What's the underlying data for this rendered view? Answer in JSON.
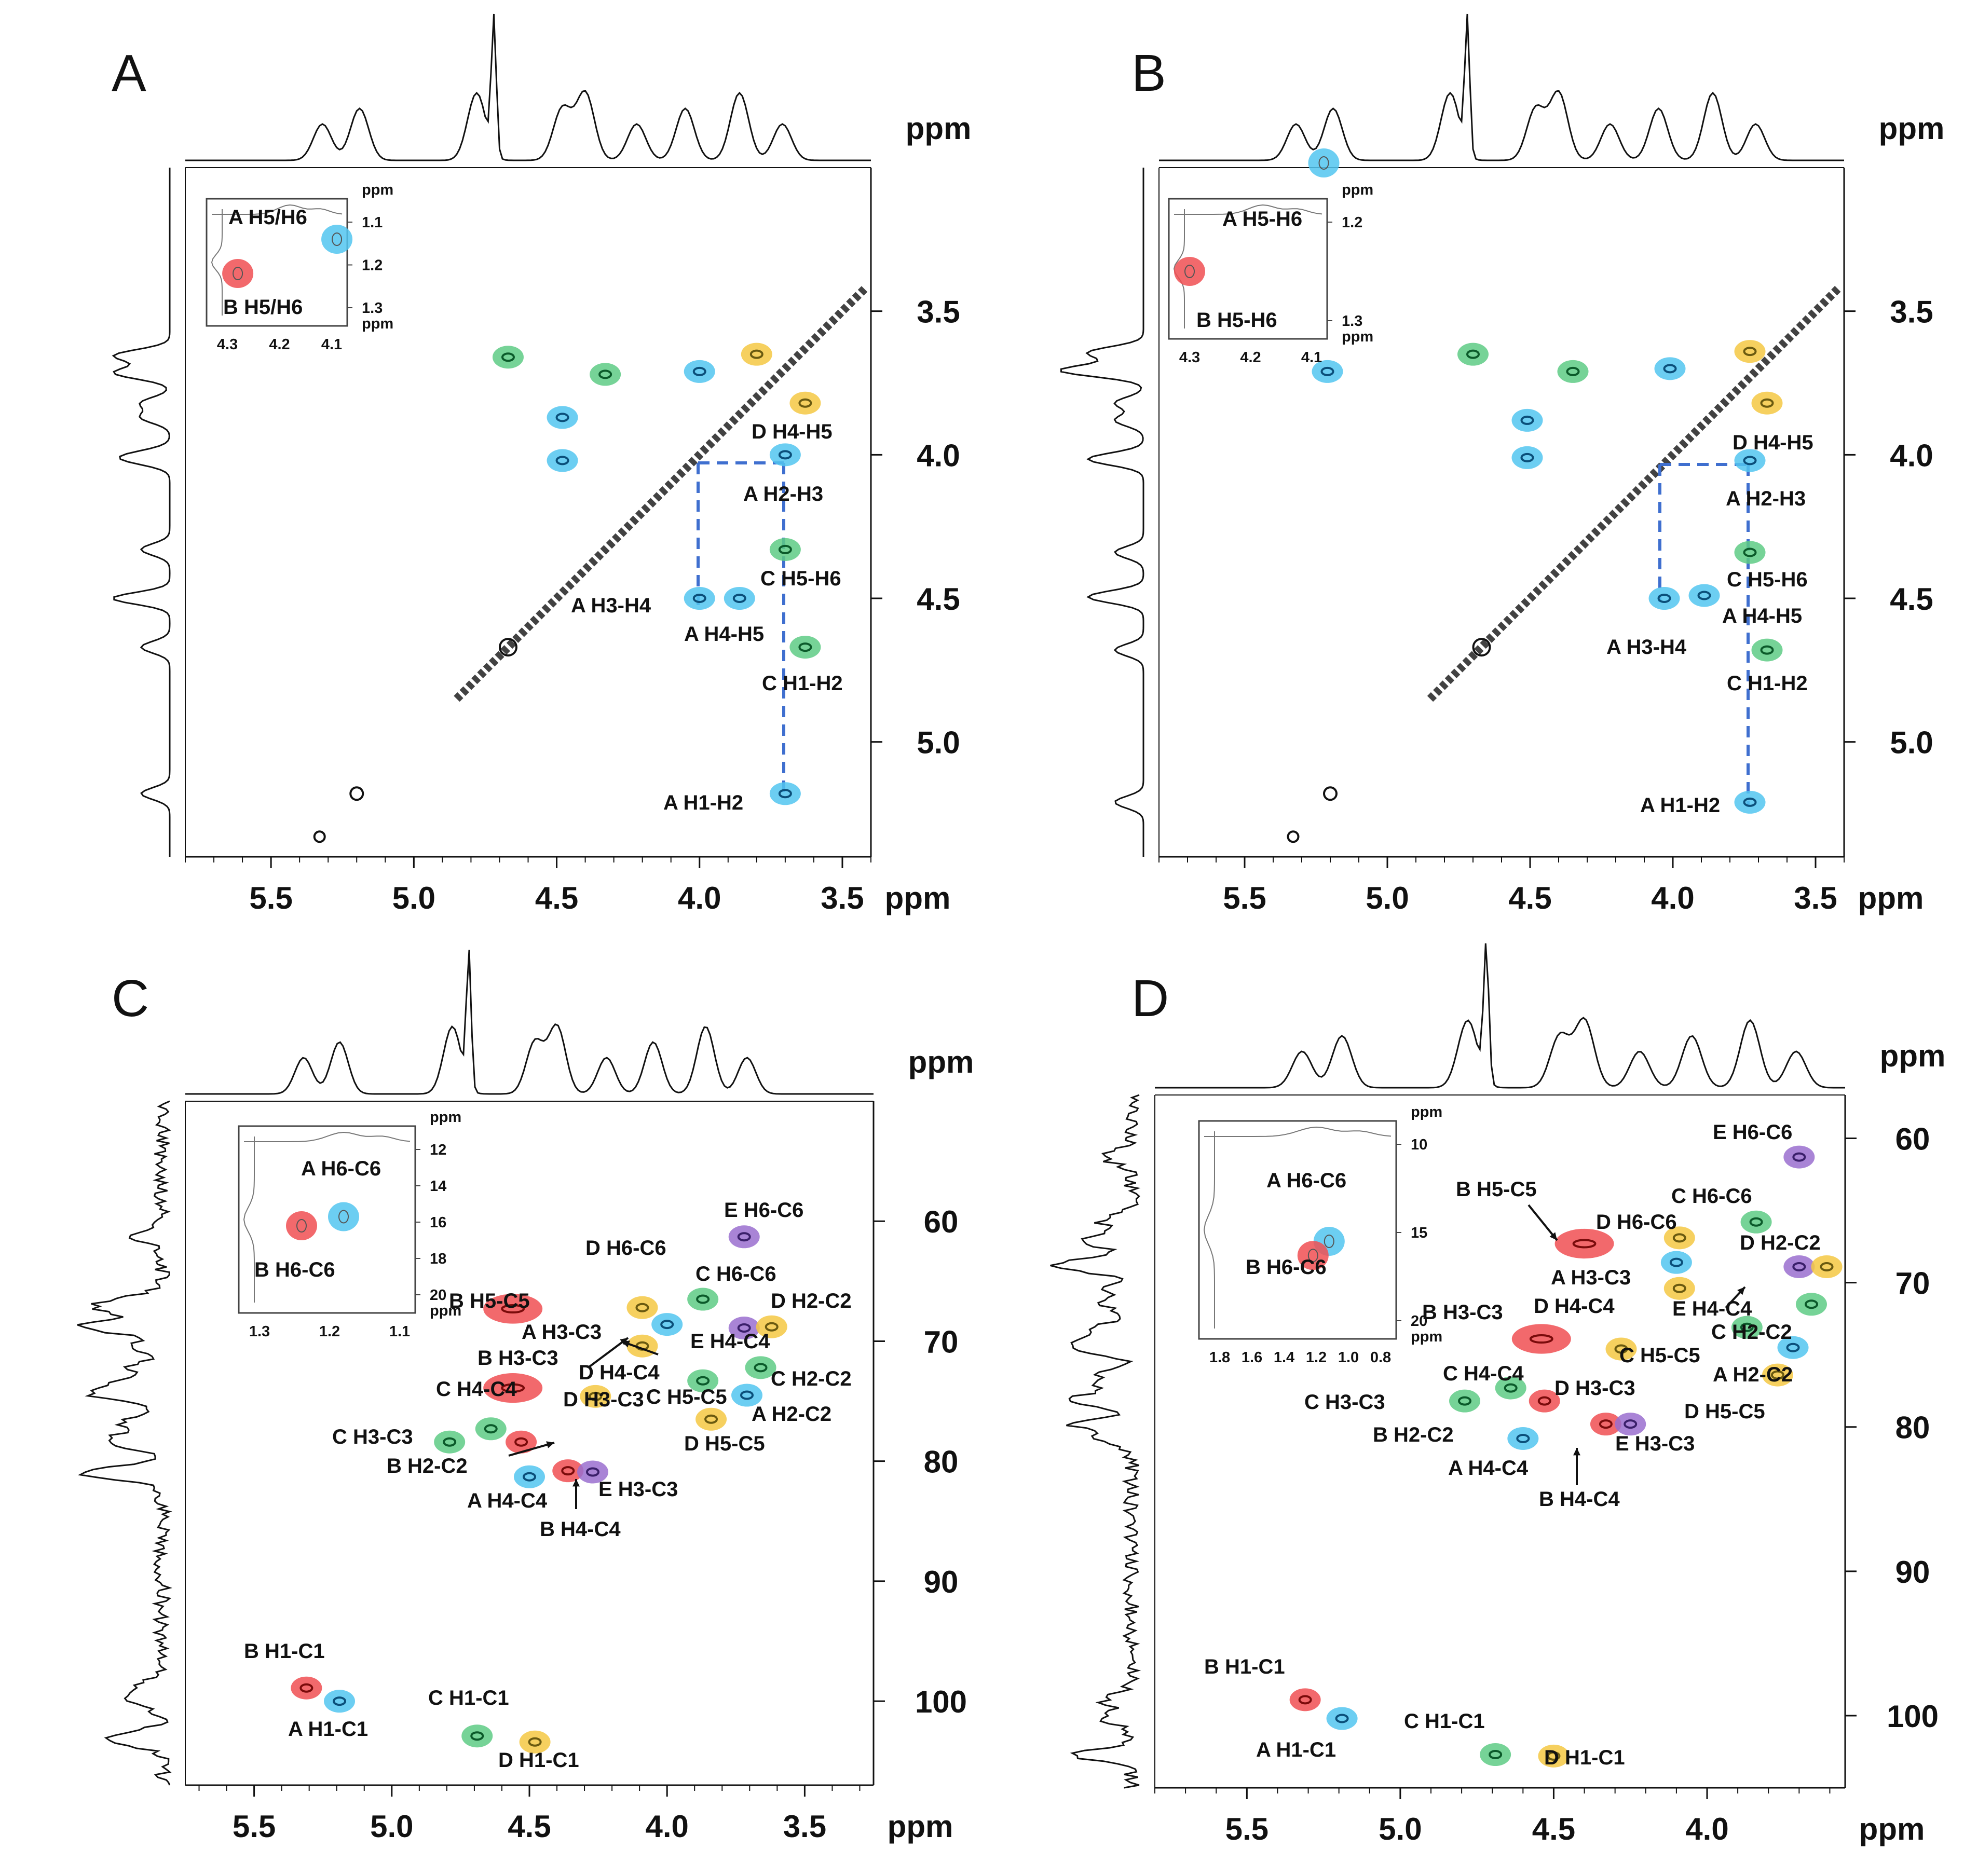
{
  "figure_colors": {
    "A": "#52c6f0",
    "B": "#f04f52",
    "C": "#5ecb85",
    "D": "#f5c843",
    "E": "#9a6fcf",
    "dashed_line": "#3f6fcf",
    "contour_blue": "#0b4f7a",
    "contour_red": "#7a0b0b",
    "contour_green": "#0b5a2a",
    "contour_yellow": "#6a5a10"
  },
  "chart_data": [
    {
      "panel": "A",
      "type": "scatter",
      "kind": "2D homonuclear correlation spectrum",
      "xlabel": "ppm",
      "ylabel": "ppm",
      "xlim": [
        5.8,
        3.4
      ],
      "ylim": [
        3.0,
        5.4
      ],
      "xticks": [
        "5.5",
        "5.0",
        "4.5",
        "4.0",
        "3.5"
      ],
      "yticks": [
        "3.5",
        "4.0",
        "4.5",
        "5.0"
      ],
      "peaks": [
        {
          "x": 4.67,
          "y": 3.66,
          "residue": "C"
        },
        {
          "x": 4.33,
          "y": 3.72,
          "residue": "C"
        },
        {
          "x": 4.48,
          "y": 3.87,
          "residue": "A"
        },
        {
          "x": 4.48,
          "y": 4.02,
          "residue": "A"
        },
        {
          "x": 4.0,
          "y": 3.71,
          "residue": "A"
        },
        {
          "x": 3.8,
          "y": 3.65,
          "residue": "D"
        },
        {
          "x": 3.63,
          "y": 3.82,
          "residue": "D",
          "label": "D H4-H5"
        },
        {
          "x": 3.7,
          "y": 4.0,
          "residue": "A",
          "label": "A H2-H3"
        },
        {
          "x": 3.7,
          "y": 4.33,
          "residue": "C",
          "label": "C H5-H6"
        },
        {
          "x": 4.0,
          "y": 4.5,
          "residue": "A",
          "label": "A H3-H4"
        },
        {
          "x": 3.86,
          "y": 4.5,
          "residue": "A",
          "label": "A H4-H5"
        },
        {
          "x": 3.63,
          "y": 4.67,
          "residue": "C",
          "label": "C H1-H2"
        },
        {
          "x": 3.7,
          "y": 5.18,
          "residue": "A",
          "label": "A H1-H2"
        }
      ],
      "inset": {
        "xticks": [
          "4.3",
          "4.2",
          "4.1"
        ],
        "yticks": [
          "1.1",
          "1.2",
          "1.3"
        ],
        "axis_label": "ppm",
        "peaks": [
          {
            "x": 4.09,
            "y": 1.14,
            "residue": "A",
            "label": "A H5/H6"
          },
          {
            "x": 4.28,
            "y": 1.22,
            "residue": "B",
            "label": "B H5/H6"
          }
        ]
      }
    },
    {
      "panel": "B",
      "type": "scatter",
      "kind": "2D homonuclear correlation spectrum",
      "xlabel": "ppm",
      "ylabel": "ppm",
      "xlim": [
        5.8,
        3.4
      ],
      "ylim": [
        3.0,
        5.4
      ],
      "xticks": [
        "5.5",
        "5.0",
        "4.5",
        "4.0",
        "3.5"
      ],
      "yticks": [
        "3.5",
        "4.0",
        "4.5",
        "5.0"
      ],
      "peaks": [
        {
          "x": 5.21,
          "y": 3.71,
          "residue": "A"
        },
        {
          "x": 4.7,
          "y": 3.65,
          "residue": "C"
        },
        {
          "x": 4.35,
          "y": 3.71,
          "residue": "C"
        },
        {
          "x": 4.51,
          "y": 3.88,
          "residue": "A"
        },
        {
          "x": 4.51,
          "y": 4.01,
          "residue": "A"
        },
        {
          "x": 4.01,
          "y": 3.7,
          "residue": "A"
        },
        {
          "x": 3.73,
          "y": 3.64,
          "residue": "D"
        },
        {
          "x": 3.67,
          "y": 3.82,
          "residue": "D",
          "label": "D H4-H5"
        },
        {
          "x": 3.73,
          "y": 4.02,
          "residue": "A",
          "label": "A H2-H3"
        },
        {
          "x": 3.73,
          "y": 4.34,
          "residue": "C",
          "label": "C H5-H6"
        },
        {
          "x": 4.03,
          "y": 4.5,
          "residue": "A",
          "label": "A H3-H4"
        },
        {
          "x": 3.89,
          "y": 4.49,
          "residue": "A",
          "label": "A H4-H5"
        },
        {
          "x": 3.67,
          "y": 4.68,
          "residue": "C",
          "label": "C H1-H2"
        },
        {
          "x": 3.73,
          "y": 5.21,
          "residue": "A",
          "label": "A H1-H2"
        }
      ],
      "inset": {
        "xticks": [
          "4.3",
          "4.2",
          "4.1"
        ],
        "yticks": [
          "1.2",
          "1.3"
        ],
        "axis_label": "ppm",
        "peaks": [
          {
            "x": 4.08,
            "y": 1.14,
            "residue": "A",
            "label": "A H5-H6"
          },
          {
            "x": 4.3,
            "y": 1.25,
            "residue": "B",
            "label": "B H5-H6"
          }
        ]
      }
    },
    {
      "panel": "C",
      "type": "scatter",
      "kind": "2D heteronuclear correlation spectrum",
      "xlabel": "ppm",
      "ylabel": "ppm",
      "xlim": [
        5.75,
        3.25
      ],
      "ylim": [
        50,
        107
      ],
      "xticks": [
        "5.5",
        "5.0",
        "4.5",
        "4.0",
        "3.5"
      ],
      "yticks": [
        "60",
        "70",
        "80",
        "90",
        "100"
      ],
      "peaks": [
        {
          "x": 3.72,
          "y": 61.3,
          "residue": "E",
          "label": "E H6-C6"
        },
        {
          "x": 4.09,
          "y": 67.2,
          "residue": "D",
          "label": "D H6-C6"
        },
        {
          "x": 3.87,
          "y": 66.5,
          "residue": "C",
          "label": "C H6-C6"
        },
        {
          "x": 4.56,
          "y": 67.3,
          "residue": "B",
          "label": "B H5-C5"
        },
        {
          "x": 4.0,
          "y": 68.6,
          "residue": "A",
          "label": "A H3-C3"
        },
        {
          "x": 3.72,
          "y": 68.9,
          "residue": "E",
          "label": "E H4-C4"
        },
        {
          "x": 3.62,
          "y": 68.8,
          "residue": "D",
          "label": "D H2-C2"
        },
        {
          "x": 4.09,
          "y": 70.4,
          "residue": "D",
          "label": "D H4-C4"
        },
        {
          "x": 3.66,
          "y": 72.2,
          "residue": "C",
          "label": "C H2-C2"
        },
        {
          "x": 3.87,
          "y": 73.3,
          "residue": "C",
          "label": "C H5-C5"
        },
        {
          "x": 4.56,
          "y": 73.9,
          "residue": "B",
          "label": "B H3-C3"
        },
        {
          "x": 4.26,
          "y": 74.6,
          "residue": "D",
          "label": "D H3-C3"
        },
        {
          "x": 3.71,
          "y": 74.5,
          "residue": "A",
          "label": "A H2-C2"
        },
        {
          "x": 3.84,
          "y": 76.5,
          "residue": "D",
          "label": "D H5-C5"
        },
        {
          "x": 4.64,
          "y": 77.3,
          "residue": "C",
          "label": "C H4-C4"
        },
        {
          "x": 4.53,
          "y": 78.4,
          "residue": "B",
          "label": "B H2-C2"
        },
        {
          "x": 4.79,
          "y": 78.4,
          "residue": "C",
          "label": "C H3-C3"
        },
        {
          "x": 4.36,
          "y": 80.8,
          "residue": "B",
          "label": "B H4-C4"
        },
        {
          "x": 4.27,
          "y": 80.9,
          "residue": "E",
          "label": "E H3-C3"
        },
        {
          "x": 4.5,
          "y": 81.3,
          "residue": "A",
          "label": "A H4-C4"
        },
        {
          "x": 5.31,
          "y": 98.9,
          "residue": "B",
          "label": "B H1-C1"
        },
        {
          "x": 5.19,
          "y": 100.0,
          "residue": "A",
          "label": "A H1-C1"
        },
        {
          "x": 4.69,
          "y": 102.9,
          "residue": "C",
          "label": "C H1-C1"
        },
        {
          "x": 4.48,
          "y": 103.4,
          "residue": "D",
          "label": "D H1-C1"
        }
      ],
      "inset": {
        "xticks": [
          "1.3",
          "1.2",
          "1.1"
        ],
        "yticks": [
          "12",
          "14",
          "16",
          "18",
          "20"
        ],
        "axis_label": "ppm",
        "peaks": [
          {
            "x": 1.18,
            "y": 15.7,
            "residue": "A",
            "label": "A H6-C6"
          },
          {
            "x": 1.24,
            "y": 16.2,
            "residue": "B",
            "label": "B H6-C6"
          }
        ]
      }
    },
    {
      "panel": "D",
      "type": "scatter",
      "kind": "2D heteronuclear correlation spectrum",
      "xlabel": "ppm",
      "ylabel": "ppm",
      "xlim": [
        5.8,
        3.55
      ],
      "ylim": [
        57,
        105
      ],
      "xticks": [
        "5.5",
        "5.0",
        "4.5",
        "4.0"
      ],
      "yticks": [
        "60",
        "70",
        "80",
        "90",
        "100"
      ],
      "peaks": [
        {
          "x": 3.7,
          "y": 61.3,
          "residue": "E",
          "label": "E H6-C6"
        },
        {
          "x": 3.84,
          "y": 65.8,
          "residue": "C",
          "label": "C H6-C6"
        },
        {
          "x": 4.4,
          "y": 67.3,
          "residue": "B",
          "label": "B H5-C5"
        },
        {
          "x": 4.09,
          "y": 66.9,
          "residue": "D",
          "label": "D H6-C6"
        },
        {
          "x": 4.1,
          "y": 68.6,
          "residue": "A",
          "label": "A H3-C3"
        },
        {
          "x": 3.7,
          "y": 68.9,
          "residue": "E",
          "label": "E H4-C4"
        },
        {
          "x": 3.61,
          "y": 68.9,
          "residue": "D",
          "label": "D H2-C2"
        },
        {
          "x": 4.09,
          "y": 70.4,
          "residue": "D",
          "label": "D H4-C4"
        },
        {
          "x": 3.66,
          "y": 71.5,
          "residue": "C",
          "label": "C H2-C2"
        },
        {
          "x": 3.87,
          "y": 73.1,
          "residue": "C",
          "label": "C H5-C5"
        },
        {
          "x": 4.54,
          "y": 73.9,
          "residue": "B",
          "label": "B H3-C3"
        },
        {
          "x": 4.28,
          "y": 74.6,
          "residue": "D",
          "label": "D H3-C3"
        },
        {
          "x": 3.72,
          "y": 74.5,
          "residue": "A",
          "label": "A H2-C2"
        },
        {
          "x": 3.77,
          "y": 76.4,
          "residue": "D",
          "label": "D H5-C5"
        },
        {
          "x": 4.64,
          "y": 77.3,
          "residue": "C",
          "label": "C H4-C4"
        },
        {
          "x": 4.53,
          "y": 78.2,
          "residue": "B",
          "label": "B H2-C2"
        },
        {
          "x": 4.79,
          "y": 78.2,
          "residue": "C",
          "label": "C H3-C3"
        },
        {
          "x": 4.33,
          "y": 79.8,
          "residue": "B",
          "label": "B H4-C4"
        },
        {
          "x": 4.25,
          "y": 79.8,
          "residue": "E",
          "label": "E H3-C3"
        },
        {
          "x": 4.6,
          "y": 80.8,
          "residue": "A",
          "label": "A H4-C4"
        },
        {
          "x": 5.31,
          "y": 98.9,
          "residue": "B",
          "label": "B H1-C1"
        },
        {
          "x": 5.19,
          "y": 100.2,
          "residue": "A",
          "label": "A H1-C1"
        },
        {
          "x": 4.69,
          "y": 102.7,
          "residue": "C",
          "label": "C H1-C1"
        },
        {
          "x": 4.5,
          "y": 102.8,
          "residue": "D",
          "label": "D H1-C1"
        }
      ],
      "inset": {
        "xticks": [
          "1.8",
          "1.6",
          "1.4",
          "1.2",
          "1.0",
          "0.8"
        ],
        "yticks": [
          "10",
          "15",
          "20"
        ],
        "axis_label": "ppm",
        "peaks": [
          {
            "x": 1.12,
            "y": 15.5,
            "residue": "A",
            "label": "A H6-C6"
          },
          {
            "x": 1.22,
            "y": 16.3,
            "residue": "B",
            "label": "B H6-C6"
          }
        ]
      }
    }
  ]
}
